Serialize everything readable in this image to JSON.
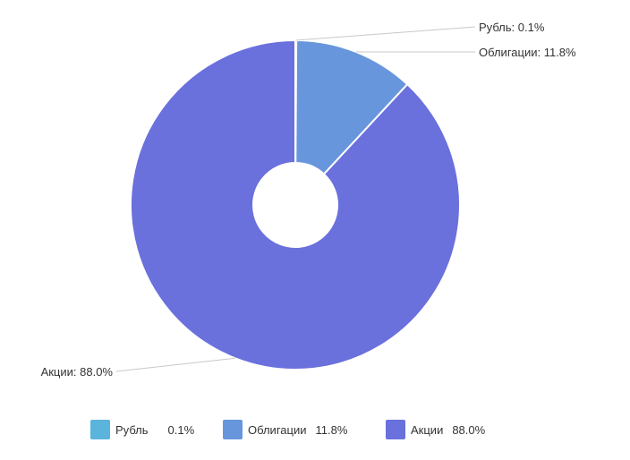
{
  "chart_data": {
    "type": "pie",
    "donut": true,
    "title": "",
    "slices": [
      {
        "name": "Рубль",
        "value": 0.1,
        "value_label": "0.1%",
        "label": "Рубль: 0.1%",
        "color": "#5ab4dc"
      },
      {
        "name": "Облигации",
        "value": 11.8,
        "value_label": "11.8%",
        "label": "Облигации: 11.8%",
        "color": "#6896dc"
      },
      {
        "name": "Акции",
        "value": 88.0,
        "value_label": "88.0%",
        "label": "Акции: 88.0%",
        "color": "#6a70dc"
      }
    ],
    "legend_position": "bottom"
  }
}
